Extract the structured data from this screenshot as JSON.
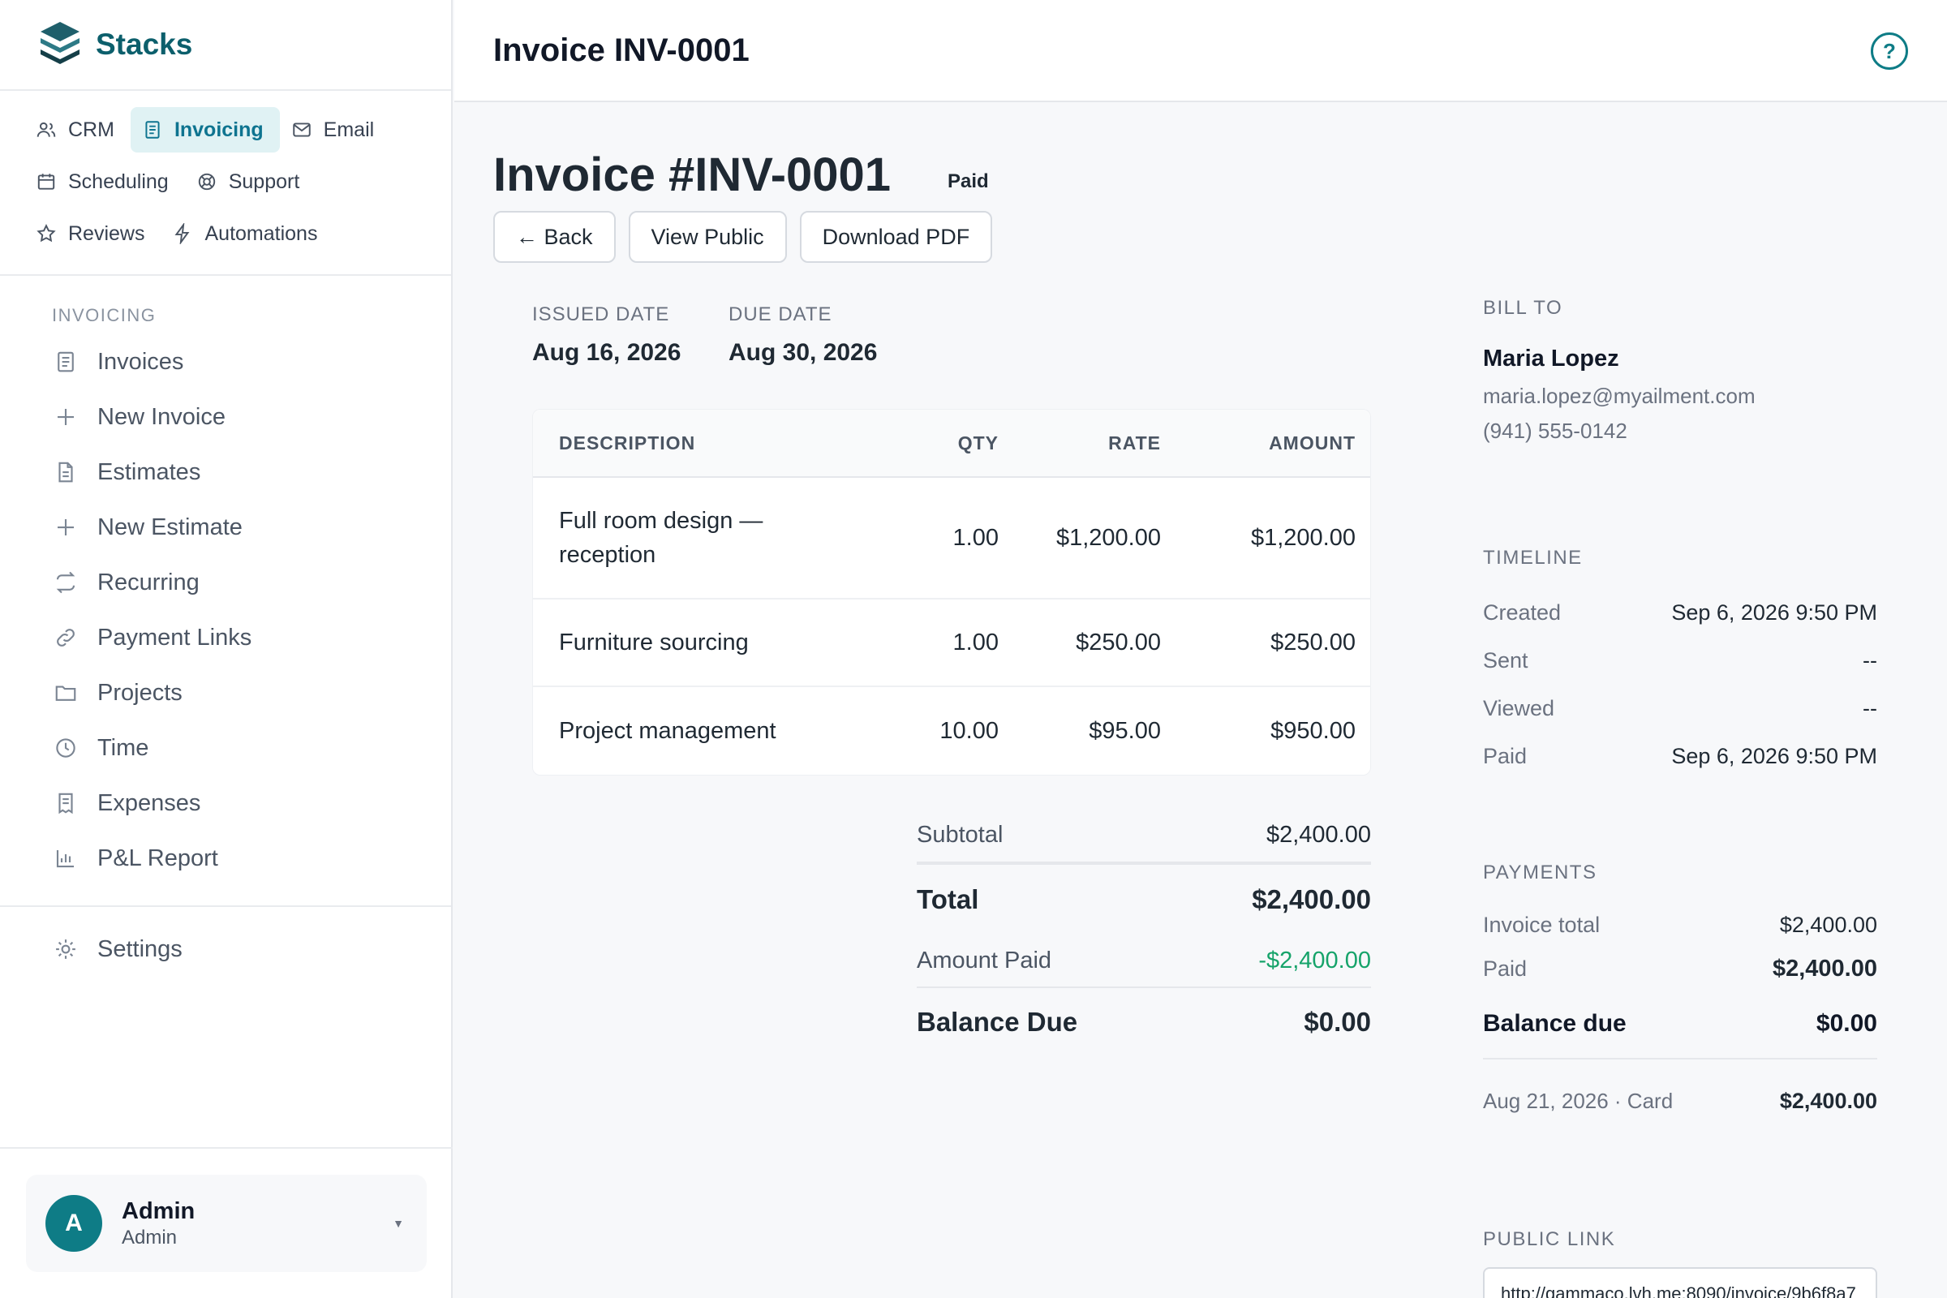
{
  "app": {
    "name": "Stacks"
  },
  "apps": [
    {
      "label": "CRM",
      "icon": "users-icon",
      "active": false
    },
    {
      "label": "Invoicing",
      "icon": "document-icon",
      "active": true
    },
    {
      "label": "Email",
      "icon": "mail-icon",
      "active": false
    },
    {
      "label": "Scheduling",
      "icon": "calendar-icon",
      "active": false
    },
    {
      "label": "Support",
      "icon": "lifebuoy-icon",
      "active": false
    },
    {
      "label": "Reviews",
      "icon": "star-icon",
      "active": false
    },
    {
      "label": "Automations",
      "icon": "bolt-icon",
      "active": false
    }
  ],
  "sidebar": {
    "section_label": "INVOICING",
    "items": [
      {
        "label": "Invoices",
        "icon": "invoice-icon"
      },
      {
        "label": "New Invoice",
        "icon": "plus-icon"
      },
      {
        "label": "Estimates",
        "icon": "file-icon"
      },
      {
        "label": "New Estimate",
        "icon": "plus-icon"
      },
      {
        "label": "Recurring",
        "icon": "repeat-icon"
      },
      {
        "label": "Payment Links",
        "icon": "link-icon"
      },
      {
        "label": "Projects",
        "icon": "folder-icon"
      },
      {
        "label": "Time",
        "icon": "clock-icon"
      },
      {
        "label": "Expenses",
        "icon": "receipt-icon"
      },
      {
        "label": "P&L Report",
        "icon": "bar-chart-icon"
      }
    ],
    "settings_label": "Settings",
    "user": {
      "initial": "A",
      "name": "Admin",
      "role": "Admin"
    }
  },
  "header": {
    "title": "Invoice INV-0001",
    "help_label": "?"
  },
  "invoice": {
    "title": "Invoice #INV-0001",
    "status": "Paid",
    "buttons": {
      "back": "← Back",
      "view_public": "View Public",
      "download": "Download PDF"
    },
    "issued_label": "ISSUED DATE",
    "issued_date": "Aug 16, 2026",
    "due_label": "DUE DATE",
    "due_date": "Aug 30, 2026",
    "table": {
      "headers": {
        "description": "DESCRIPTION",
        "qty": "QTY",
        "rate": "RATE",
        "amount": "AMOUNT"
      },
      "rows": [
        {
          "description": "Full room design — reception",
          "qty": "1.00",
          "rate": "$1,200.00",
          "amount": "$1,200.00"
        },
        {
          "description": "Furniture sourcing",
          "qty": "1.00",
          "rate": "$250.00",
          "amount": "$250.00"
        },
        {
          "description": "Project management",
          "qty": "10.00",
          "rate": "$95.00",
          "amount": "$950.00"
        }
      ]
    },
    "totals": {
      "subtotal_label": "Subtotal",
      "subtotal": "$2,400.00",
      "total_label": "Total",
      "total": "$2,400.00",
      "paid_label": "Amount Paid",
      "paid": "-$2,400.00",
      "balance_label": "Balance Due",
      "balance": "$0.00"
    }
  },
  "bill_to": {
    "label": "BILL TO",
    "name": "Maria Lopez",
    "email": "maria.lopez@myailment.com",
    "phone": "(941) 555-0142"
  },
  "timeline": {
    "label": "TIMELINE",
    "rows": [
      {
        "label": "Created",
        "value": "Sep 6, 2026 9:50 PM"
      },
      {
        "label": "Sent",
        "value": "--"
      },
      {
        "label": "Viewed",
        "value": "--"
      },
      {
        "label": "Paid",
        "value": "Sep 6, 2026 9:50 PM"
      }
    ]
  },
  "payments": {
    "label": "PAYMENTS",
    "invoice_total_label": "Invoice total",
    "invoice_total": "$2,400.00",
    "paid_label": "Paid",
    "paid": "$2,400.00",
    "balance_label": "Balance due",
    "balance": "$0.00",
    "entry_label": "Aug 21, 2026 · Card",
    "entry_amount": "$2,400.00"
  },
  "public_link": {
    "label": "PUBLIC LINK",
    "url": "http://gammaco.lvh.me:8090/invoice/9b6f8a7"
  },
  "colors": {
    "brand": "#0c5f6c",
    "accent": "#0e7c86",
    "paid_green": "#16a36a"
  }
}
